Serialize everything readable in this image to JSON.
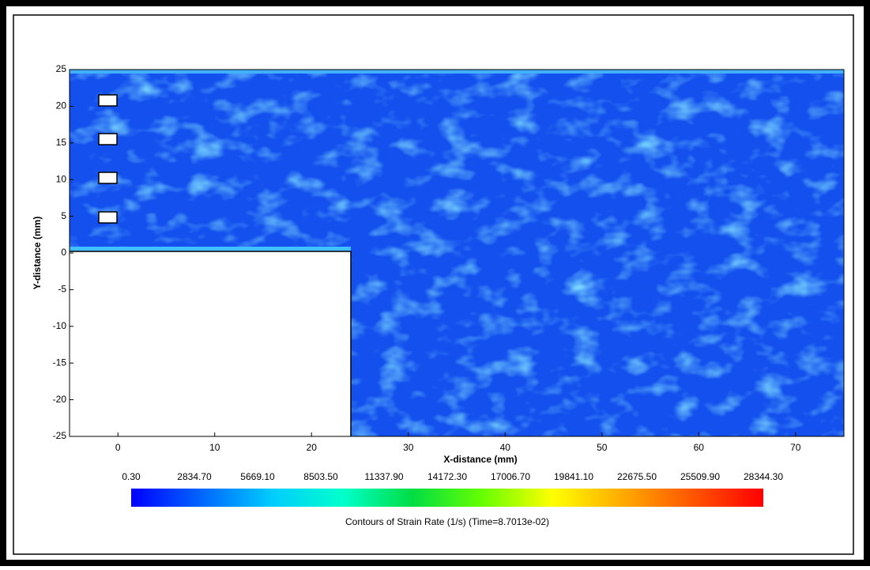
{
  "chart_data": {
    "type": "contour",
    "xlabel": "X-distance (mm)",
    "ylabel": "Y-distance (mm)",
    "xlim": [
      -5,
      75
    ],
    "ylim": [
      -25,
      25
    ],
    "xticks": [
      0,
      10,
      20,
      30,
      40,
      50,
      60,
      70
    ],
    "yticks": [
      -25,
      -20,
      -15,
      -10,
      -5,
      0,
      5,
      10,
      15,
      20,
      25
    ],
    "colorbar": {
      "title": "Contours of Strain Rate (1/s)  (Time=8.7013e-02)",
      "lim": [
        0.3,
        28344.3
      ],
      "colors": [
        "#0000ff",
        "#0066ff",
        "#00ccff",
        "#00ffcc",
        "#00dd44",
        "#66ff00",
        "#ffff00",
        "#ffaa00",
        "#ff5500",
        "#ff0000"
      ],
      "ticks": [
        {
          "value": 0.3,
          "label": "0.30"
        },
        {
          "value": 2834.7,
          "label": "2834.70"
        },
        {
          "value": 5669.1,
          "label": "5669.10"
        },
        {
          "value": 8503.5,
          "label": "8503.50"
        },
        {
          "value": 11337.9,
          "label": "11337.90"
        },
        {
          "value": 14172.3,
          "label": "14172.30"
        },
        {
          "value": 17006.7,
          "label": "17006.70"
        },
        {
          "value": 19841.1,
          "label": "19841.10"
        },
        {
          "value": 22675.5,
          "label": "22675.50"
        },
        {
          "value": 25509.9,
          "label": "25509.90"
        },
        {
          "value": 28344.3,
          "label": "28344.30"
        }
      ]
    }
  }
}
